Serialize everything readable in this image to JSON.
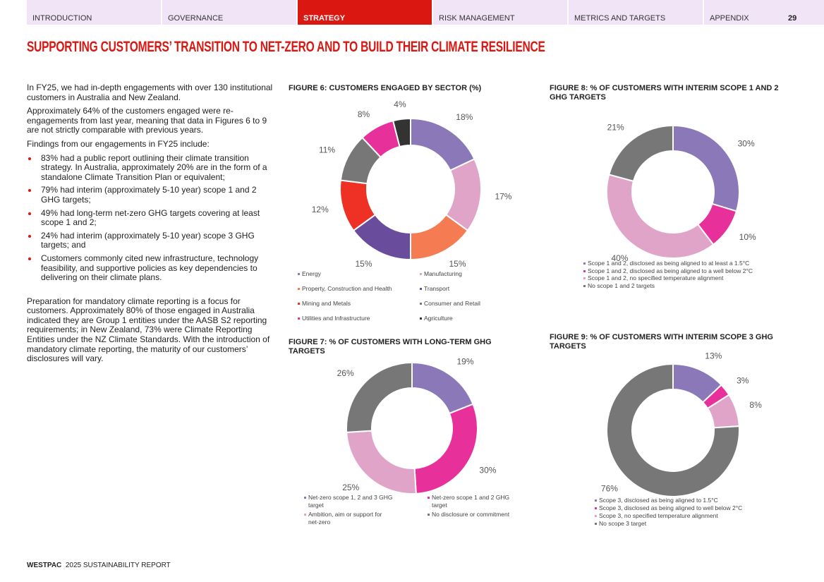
{
  "nav": {
    "tabs": [
      "INTRODUCTION",
      "GOVERNANCE",
      "STRATEGY",
      "RISK MANAGEMENT",
      "METRICS AND TARGETS",
      "APPENDIX"
    ],
    "active": 2,
    "page_number": 29
  },
  "title": "SUPPORTING CUSTOMERS’ TRANSITION TO NET-ZERO AND TO BUILD THEIR CLIMATE RESILIENCE",
  "body": {
    "paragraphs": [
      "In FY25, we had in-depth engagements with over 130 institutional customers in Australia and New Zealand.",
      "Approximately 64% of the customers engaged were re-engagements from last year, meaning that data in Figures 6 to 9 are not strictly comparable with previous years.",
      "Findings from our engagements in FY25 include:"
    ],
    "bullets": [
      "83% had a public report outlining their climate transition strategy. In Australia, approximately 20% are in the form of a standalone Climate Transition Plan or equivalent;",
      "79% had interim (approximately 5-10 year) scope 1 and 2 GHG targets;",
      "49% had long-term net-zero GHG targets covering at least scope 1 and 2;",
      "24% had interim (approximately 5-10 year) scope 3 GHG targets; and",
      "Customers commonly cited new infrastructure, technology feasibility, and supportive policies as key dependencies to delivering on their climate plans."
    ],
    "closing": "Preparation for mandatory climate reporting is a focus for customers. Approximately 80% of those engaged in Australia indicated they are Group 1 entities under the AASB S2 reporting requirements; in New Zealand, 73% were Climate Reporting Entities under the NZ Climate Standards. With the introduction of mandatory climate reporting, the maturity of our customers’ disclosures will vary."
  },
  "chart_data": [
    {
      "type": "donut",
      "title": "FIGURE 6: CUSTOMERS ENGAGED BY SECTOR (%)",
      "categories": [
        "Energy",
        "Manufacturing",
        "Property, Construction and Health",
        "Transport",
        "Mining and Metals",
        "Consumer and Retail",
        "Utilities and Infrastructure",
        "Agriculture"
      ],
      "values": [
        18,
        17,
        15,
        15,
        12,
        11,
        8,
        4
      ],
      "value_labels": [
        "18%",
        "17%",
        "15%",
        "15%",
        "12%",
        "11%",
        "8%",
        "4%"
      ],
      "colors": [
        "#8b78b8",
        "#e0a4c8",
        "#f47b52",
        "#6a4c9c",
        "#ee3124",
        "#777777",
        "#e8309a",
        "#333333"
      ]
    },
    {
      "type": "donut",
      "title": "FIGURE 7: % OF CUSTOMERS WITH LONG-TERM GHG TARGETS",
      "categories": [
        "Net-zero scope 1, 2 and 3 GHG target",
        "Net-zero scope 1 and 2 GHG target",
        "Ambition, aim or support for net-zero",
        "No disclosure or commitment"
      ],
      "values": [
        19,
        30,
        25,
        26
      ],
      "value_labels": [
        "19%",
        "30%",
        "25%",
        "26%"
      ],
      "colors": [
        "#8b78b8",
        "#e8309a",
        "#e0a4c8",
        "#777777"
      ]
    },
    {
      "type": "donut",
      "title": "FIGURE 8: % OF CUSTOMERS WITH INTERIM SCOPE 1 AND 2 GHG TARGETS",
      "categories": [
        "Scope 1 and 2, disclosed as being aligned to at least a 1.5°C",
        "Scope 1 and 2, disclosed as being aligned to a well below 2°C",
        "Scope 1 and 2, no specified temperature alignment",
        "No scope 1 and 2 targets"
      ],
      "values": [
        30,
        10,
        40,
        21
      ],
      "value_labels": [
        "30%",
        "10%",
        "40%",
        "21%"
      ],
      "colors": [
        "#8b78b8",
        "#e8309a",
        "#e0a4c8",
        "#777777"
      ]
    },
    {
      "type": "donut",
      "title": "FIGURE 9: % OF CUSTOMERS WITH INTERIM SCOPE 3 GHG TARGETS",
      "categories": [
        "Scope 3, disclosed as being aligned to 1.5°C",
        "Scope 3, disclosed as being aligned to well below 2°C",
        "Scope 3, no specified temperature alignment",
        "No scope 3 target"
      ],
      "values": [
        13,
        3,
        8,
        76
      ],
      "value_labels": [
        "13%",
        "3%",
        "8%",
        "76%"
      ],
      "colors": [
        "#8b78b8",
        "#e8309a",
        "#e0a4c8",
        "#777777"
      ]
    }
  ],
  "footer": {
    "brand": "WESTPAC",
    "text": "2025 SUSTAINABILITY REPORT"
  }
}
